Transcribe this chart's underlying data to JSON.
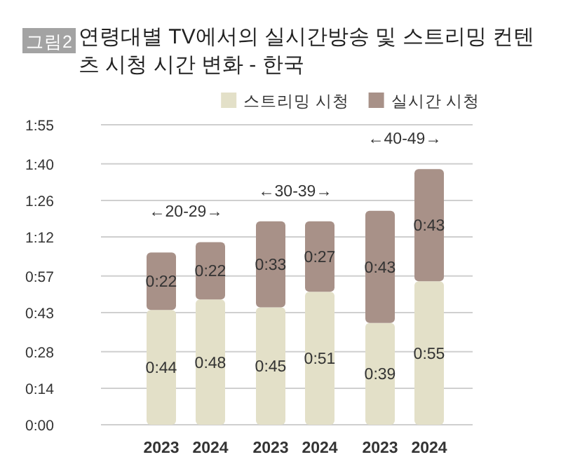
{
  "chart_data": {
    "type": "bar",
    "stacked": true,
    "title": "연령대별 TV에서의 실시간방송 및 스트리밍 컨텐츠 시청 시간 변화 - 한국",
    "categories": [
      "2023",
      "2024",
      "2023",
      "2024",
      "2023",
      "2024"
    ],
    "series": [
      {
        "name": "스트리밍 시청",
        "color": "#e3e0c8",
        "values": [
          44,
          48,
          45,
          51,
          39,
          55
        ],
        "value_labels": [
          "0:44",
          "0:48",
          "0:45",
          "0:51",
          "0:39",
          "0:55"
        ]
      },
      {
        "name": "실시간 시청",
        "color": "#a89188",
        "values": [
          22,
          22,
          33,
          27,
          43,
          43
        ],
        "value_labels": [
          "0:22",
          "0:22",
          "0:33",
          "0:27",
          "0:43",
          "0:43"
        ]
      }
    ],
    "ylim": [
      0,
      115
    ],
    "yticks": [
      {
        "value": 0,
        "label": "0:00"
      },
      {
        "value": 14,
        "label": "0:14"
      },
      {
        "value": 28,
        "label": "0:28"
      },
      {
        "value": 43,
        "label": "0:43"
      },
      {
        "value": 57,
        "label": "0:57"
      },
      {
        "value": 72,
        "label": "1:12"
      },
      {
        "value": 86,
        "label": "1:26"
      },
      {
        "value": 100,
        "label": "1:40"
      },
      {
        "value": 115,
        "label": "1:55"
      }
    ],
    "grid": "y",
    "legend": "top right",
    "annotations": [
      "←20-29→",
      "←30-39→",
      "←40-49→",
      "그림2"
    ]
  }
}
